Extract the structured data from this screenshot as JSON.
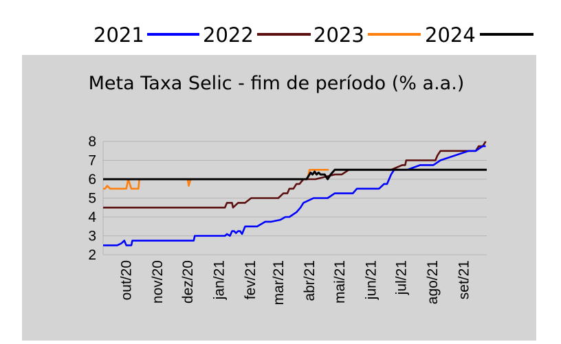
{
  "chart_data": {
    "type": "line",
    "title": "Meta Taxa Selic - fim de período (% a.a.)",
    "xlabel": "",
    "ylabel": "",
    "ylim": [
      2,
      8
    ],
    "yticks": [
      2,
      3,
      4,
      5,
      6,
      7,
      8
    ],
    "x_range": [
      "2020-09-08",
      "2021-09-24"
    ],
    "xtick_labels": [
      "out/20",
      "nov/20",
      "dez/20",
      "jan/21",
      "fev/21",
      "mar/21",
      "abr/21",
      "mai/21",
      "jun/21",
      "jul/21",
      "ago/21",
      "set/21"
    ],
    "xtick_dates": [
      "2020-10-01",
      "2020-11-01",
      "2020-12-01",
      "2021-01-01",
      "2021-02-01",
      "2021-03-01",
      "2021-04-01",
      "2021-05-01",
      "2021-06-01",
      "2021-07-01",
      "2021-08-01",
      "2021-09-01"
    ],
    "grid": true,
    "legend_position": "top",
    "series": [
      {
        "name": "2021",
        "color": "#0000ff",
        "x": [
          "2020-09-08",
          "2020-09-22",
          "2020-09-26",
          "2020-09-29",
          "2020-10-01",
          "2020-10-06",
          "2020-10-07",
          "2020-10-27",
          "2020-11-06",
          "2020-11-10",
          "2020-11-27",
          "2020-12-02",
          "2020-12-07",
          "2020-12-08",
          "2020-12-16",
          "2021-01-05",
          "2021-01-07",
          "2021-01-09",
          "2021-01-12",
          "2021-01-14",
          "2021-01-16",
          "2021-01-18",
          "2021-01-20",
          "2021-01-22",
          "2021-01-24",
          "2021-01-27",
          "2021-02-01",
          "2021-02-08",
          "2021-02-16",
          "2021-02-22",
          "2021-03-03",
          "2021-03-08",
          "2021-03-10",
          "2021-03-12",
          "2021-03-19",
          "2021-03-23",
          "2021-03-26",
          "2021-04-05",
          "2021-04-19",
          "2021-04-26",
          "2021-05-10",
          "2021-05-14",
          "2021-05-18",
          "2021-05-24",
          "2021-06-09",
          "2021-06-14",
          "2021-06-17",
          "2021-06-21",
          "2021-06-24",
          "2021-07-07",
          "2021-07-20",
          "2021-08-02",
          "2021-08-09",
          "2021-09-06",
          "2021-09-13",
          "2021-09-20",
          "2021-09-23"
        ],
        "values": [
          2.5,
          2.5,
          2.6,
          2.75,
          2.5,
          2.5,
          2.75,
          2.75,
          2.75,
          2.75,
          2.75,
          2.75,
          2.75,
          3.0,
          3.0,
          3.0,
          3.0,
          3.1,
          3.0,
          3.25,
          3.25,
          3.15,
          3.25,
          3.25,
          3.1,
          3.5,
          3.5,
          3.5,
          3.75,
          3.75,
          3.85,
          4.0,
          4.0,
          4.0,
          4.25,
          4.5,
          4.75,
          5.0,
          5.0,
          5.25,
          5.25,
          5.25,
          5.5,
          5.5,
          5.5,
          5.75,
          5.75,
          6.25,
          6.5,
          6.5,
          6.75,
          6.75,
          7.0,
          7.5,
          7.5,
          7.75,
          7.75
        ]
      },
      {
        "name": "2022",
        "color": "#5c0f0f",
        "x": [
          "2020-09-08",
          "2021-01-07",
          "2021-01-09",
          "2021-01-14",
          "2021-01-15",
          "2021-01-20",
          "2021-01-27",
          "2021-02-02",
          "2021-02-22",
          "2021-03-01",
          "2021-03-06",
          "2021-03-10",
          "2021-03-12",
          "2021-03-16",
          "2021-03-19",
          "2021-03-22",
          "2021-03-26",
          "2021-03-29",
          "2021-04-07",
          "2021-04-26",
          "2021-05-03",
          "2021-05-10",
          "2021-06-21",
          "2021-07-02",
          "2021-07-05",
          "2021-07-06",
          "2021-07-20",
          "2021-08-04",
          "2021-08-06",
          "2021-08-09",
          "2021-09-06",
          "2021-09-13",
          "2021-09-16",
          "2021-09-20",
          "2021-09-23"
        ],
        "values": [
          4.5,
          4.5,
          4.75,
          4.75,
          4.5,
          4.75,
          4.75,
          5.0,
          5.0,
          5.0,
          5.25,
          5.25,
          5.5,
          5.5,
          5.75,
          5.75,
          6.0,
          6.0,
          6.0,
          6.25,
          6.25,
          6.5,
          6.5,
          6.75,
          6.75,
          7.0,
          7.0,
          7.0,
          7.25,
          7.5,
          7.5,
          7.5,
          7.75,
          7.75,
          8.0
        ]
      },
      {
        "name": "2023",
        "color": "#ff7f0e",
        "x": [
          "2020-09-08",
          "2020-09-10",
          "2020-09-12",
          "2020-09-15",
          "2020-09-18",
          "2020-10-01",
          "2020-10-03",
          "2020-10-06",
          "2020-10-13",
          "2020-10-14",
          "2020-12-01",
          "2020-12-02",
          "2020-12-04",
          "2021-03-30",
          "2021-04-01",
          "2021-04-20"
        ],
        "values": [
          5.5,
          5.5,
          5.65,
          5.5,
          5.5,
          5.5,
          6.0,
          5.5,
          5.5,
          6.0,
          6.0,
          5.65,
          6.0,
          6.0,
          6.5,
          6.5
        ]
      },
      {
        "name": "2024",
        "color": "#000000",
        "x": [
          "2020-09-08",
          "2021-03-29",
          "2021-04-01",
          "2021-04-02",
          "2021-04-04",
          "2021-04-06",
          "2021-04-08",
          "2021-04-10",
          "2021-04-12",
          "2021-04-16",
          "2021-04-19",
          "2021-04-22",
          "2021-04-26",
          "2021-09-24"
        ],
        "values": [
          6.0,
          6.0,
          6.25,
          6.35,
          6.25,
          6.4,
          6.25,
          6.35,
          6.25,
          6.25,
          6.0,
          6.25,
          6.5,
          6.5
        ]
      }
    ]
  }
}
